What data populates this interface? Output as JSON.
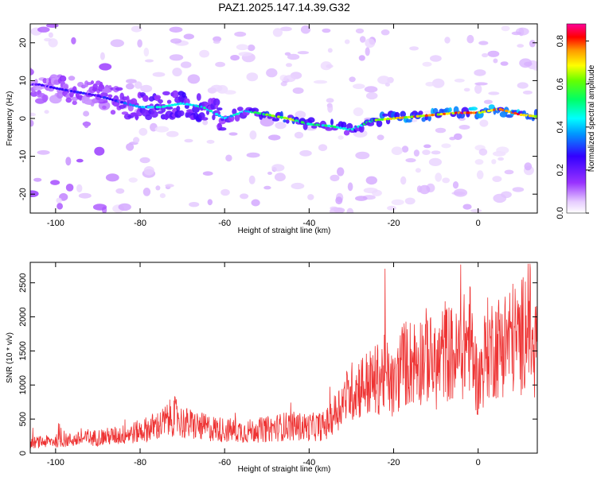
{
  "title": "PAZ1.2025.147.14.39.G32",
  "chart_data": [
    {
      "type": "heatmap",
      "xlabel": "Height of straight line (km)",
      "ylabel": "Frequency (Hz)",
      "xlim": [
        -106,
        14
      ],
      "ylim": [
        -25,
        25
      ],
      "x_ticks": [
        -100,
        -80,
        -60,
        -40,
        -20,
        0
      ],
      "y_ticks": [
        -20,
        -10,
        0,
        10,
        20
      ],
      "colorbar": {
        "label": "Normalized spectral amplitude",
        "range": [
          0,
          0.88
        ],
        "ticks": [
          0.0,
          0.2,
          0.4,
          0.6,
          0.8
        ]
      },
      "ridge": {
        "x": [
          -104,
          -100,
          -95,
          -90,
          -85,
          -80,
          -75,
          -70,
          -65,
          -60,
          -55,
          -50,
          -45,
          -40,
          -35,
          -30,
          -25,
          -20,
          -15,
          -10,
          -5,
          0,
          5,
          10,
          14
        ],
        "y": [
          9,
          8,
          7,
          6,
          4.5,
          3,
          3,
          4,
          3,
          0,
          2,
          1,
          0,
          -1.5,
          -2,
          -3,
          -0.5,
          0,
          0.5,
          1,
          1.5,
          1.5,
          2.5,
          1,
          0.5
        ],
        "amplitude": [
          0.25,
          0.3,
          0.3,
          0.3,
          0.35,
          0.45,
          0.5,
          0.55,
          0.5,
          0.45,
          0.5,
          0.65,
          0.7,
          0.55,
          0.55,
          0.5,
          0.65,
          0.75,
          0.8,
          0.82,
          0.85,
          0.85,
          0.8,
          0.85,
          0.8
        ]
      }
    },
    {
      "type": "line",
      "xlabel": "Height of straight line (km)",
      "ylabel": "SNR (10 * v/v)",
      "xlim": [
        -106,
        14
      ],
      "ylim": [
        0,
        2800
      ],
      "x_ticks": [
        -100,
        -80,
        -60,
        -40,
        -20,
        0
      ],
      "y_ticks": [
        0,
        500,
        1000,
        1500,
        2000,
        2500
      ],
      "line_color": "#ee3333",
      "envelope": {
        "x": [
          -106,
          -100,
          -95,
          -90,
          -85,
          -80,
          -75,
          -72,
          -70,
          -65,
          -60,
          -55,
          -50,
          -45,
          -40,
          -36,
          -34,
          -32,
          -30,
          -28,
          -25,
          -22,
          -20,
          -18,
          -15,
          -12,
          -10,
          -8,
          -5,
          -2,
          0,
          2,
          5,
          8,
          10,
          12,
          13,
          14
        ],
        "y": [
          150,
          180,
          200,
          230,
          260,
          320,
          420,
          550,
          450,
          380,
          340,
          320,
          350,
          400,
          380,
          400,
          650,
          850,
          1000,
          1100,
          1150,
          1300,
          1050,
          1450,
          1500,
          1600,
          1350,
          1700,
          1550,
          1900,
          1100,
          1700,
          1750,
          1900,
          1800,
          2400,
          1500,
          2000
        ]
      }
    }
  ]
}
